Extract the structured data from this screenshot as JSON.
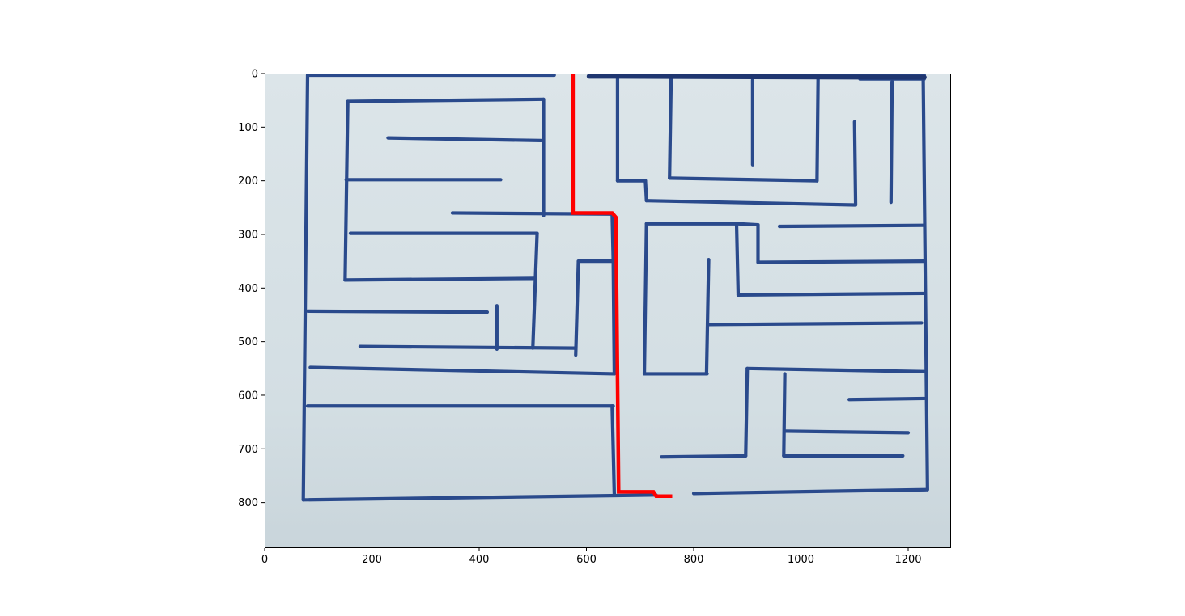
{
  "chart_data": {
    "type": "image-with-path-overlay",
    "xlim": [
      0,
      1280
    ],
    "ylim": [
      885,
      0
    ],
    "x_ticks": [
      0,
      200,
      400,
      600,
      800,
      1000,
      1200
    ],
    "y_ticks": [
      0,
      100,
      200,
      300,
      400,
      500,
      600,
      700,
      800
    ],
    "x_tick_labels": [
      "0",
      "200",
      "400",
      "600",
      "800",
      "1000",
      "1200"
    ],
    "y_tick_labels": [
      "0",
      "100",
      "200",
      "300",
      "400",
      "500",
      "600",
      "700",
      "800"
    ],
    "xlabel": "",
    "ylabel": "",
    "title": "",
    "grid": false,
    "image": {
      "content": "hand-drawn maze photographed on paper",
      "wall_color": "#2a4a8c",
      "paper_color": "#d7e1e6",
      "walls": [
        [
          [
            80,
            3
          ],
          [
            540,
            3
          ]
        ],
        [
          [
            605,
            3
          ],
          [
            1230,
            3
          ]
        ],
        [
          [
            1110,
            10
          ],
          [
            1230,
            10
          ]
        ],
        [
          [
            80,
            3
          ],
          [
            72,
            795
          ]
        ],
        [
          [
            72,
            795
          ],
          [
            730,
            786
          ]
        ],
        [
          [
            800,
            783
          ],
          [
            1235,
            776
          ]
        ],
        [
          [
            1228,
            3
          ],
          [
            1236,
            776
          ]
        ],
        [
          [
            155,
            52
          ],
          [
            520,
            48
          ]
        ],
        [
          [
            155,
            52
          ],
          [
            150,
            385
          ]
        ],
        [
          [
            520,
            48
          ],
          [
            520,
            265
          ]
        ],
        [
          [
            230,
            120
          ],
          [
            515,
            125
          ]
        ],
        [
          [
            152,
            198
          ],
          [
            440,
            198
          ]
        ],
        [
          [
            350,
            260
          ],
          [
            648,
            262
          ]
        ],
        [
          [
            160,
            298
          ],
          [
            508,
            298
          ]
        ],
        [
          [
            508,
            298
          ],
          [
            500,
            512
          ]
        ],
        [
          [
            150,
            385
          ],
          [
            503,
            382
          ]
        ],
        [
          [
            80,
            443
          ],
          [
            415,
            445
          ]
        ],
        [
          [
            433,
            433
          ],
          [
            433,
            514
          ]
        ],
        [
          [
            178,
            509
          ],
          [
            578,
            512
          ]
        ],
        [
          [
            585,
            350
          ],
          [
            580,
            525
          ]
        ],
        [
          [
            585,
            350
          ],
          [
            648,
            350
          ]
        ],
        [
          [
            648,
            262
          ],
          [
            650,
            350
          ]
        ],
        [
          [
            650,
            352
          ],
          [
            652,
            560
          ]
        ],
        [
          [
            85,
            548
          ],
          [
            652,
            560
          ]
        ],
        [
          [
            80,
            620
          ],
          [
            650,
            620
          ]
        ],
        [
          [
            648,
            620
          ],
          [
            652,
            786
          ]
        ],
        [
          [
            658,
            5
          ],
          [
            658,
            200
          ]
        ],
        [
          [
            658,
            200
          ],
          [
            710,
            200
          ]
        ],
        [
          [
            710,
            200
          ],
          [
            712,
            237
          ]
        ],
        [
          [
            712,
            237
          ],
          [
            1100,
            245
          ]
        ],
        [
          [
            758,
            5
          ],
          [
            755,
            195
          ]
        ],
        [
          [
            755,
            195
          ],
          [
            1030,
            200
          ]
        ],
        [
          [
            1032,
            10
          ],
          [
            1030,
            200
          ]
        ],
        [
          [
            910,
            12
          ],
          [
            910,
            170
          ]
        ],
        [
          [
            1100,
            90
          ],
          [
            1102,
            245
          ]
        ],
        [
          [
            1170,
            15
          ],
          [
            1168,
            240
          ]
        ],
        [
          [
            712,
            280
          ],
          [
            880,
            280
          ]
        ],
        [
          [
            712,
            280
          ],
          [
            708,
            560
          ]
        ],
        [
          [
            708,
            560
          ],
          [
            825,
            560
          ]
        ],
        [
          [
            828,
            347
          ],
          [
            824,
            560
          ]
        ],
        [
          [
            880,
            280
          ],
          [
            883,
            413
          ]
        ],
        [
          [
            883,
            280
          ],
          [
            920,
            282
          ]
        ],
        [
          [
            920,
            282
          ],
          [
            920,
            352
          ]
        ],
        [
          [
            920,
            352
          ],
          [
            1230,
            350
          ]
        ],
        [
          [
            960,
            285
          ],
          [
            1230,
            283
          ]
        ],
        [
          [
            883,
            413
          ],
          [
            1230,
            410
          ]
        ],
        [
          [
            827,
            468
          ],
          [
            1225,
            465
          ]
        ],
        [
          [
            900,
            550
          ],
          [
            1230,
            556
          ]
        ],
        [
          [
            900,
            550
          ],
          [
            897,
            713
          ]
        ],
        [
          [
            740,
            715
          ],
          [
            897,
            713
          ]
        ],
        [
          [
            970,
            560
          ],
          [
            968,
            713
          ]
        ],
        [
          [
            968,
            713
          ],
          [
            1190,
            713
          ]
        ],
        [
          [
            970,
            667
          ],
          [
            1200,
            670
          ]
        ],
        [
          [
            1090,
            608
          ],
          [
            1230,
            606
          ]
        ]
      ]
    },
    "path": {
      "color": "#ff0000",
      "points": [
        [
          575,
          0
        ],
        [
          575,
          260
        ],
        [
          648,
          260
        ],
        [
          655,
          268
        ],
        [
          660,
          780
        ],
        [
          725,
          780
        ],
        [
          730,
          788
        ],
        [
          760,
          788
        ]
      ]
    }
  }
}
